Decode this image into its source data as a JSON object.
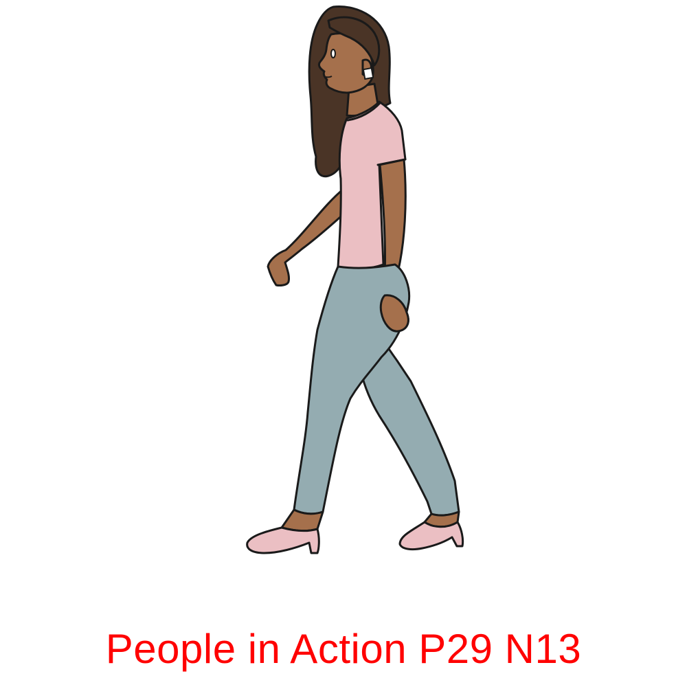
{
  "caption": {
    "text": "People in Action P29 N13",
    "color": "#ff0000"
  },
  "illustration": {
    "subject": "woman-walking",
    "colors": {
      "skin": "#a5704c",
      "hair": "#4a3426",
      "shirt": "#ebbfc3",
      "pants": "#94acb1",
      "shoes": "#ebbfc3",
      "outline": "#1a1a1a",
      "earring": "#ffffff",
      "background": "#ffffff"
    }
  }
}
